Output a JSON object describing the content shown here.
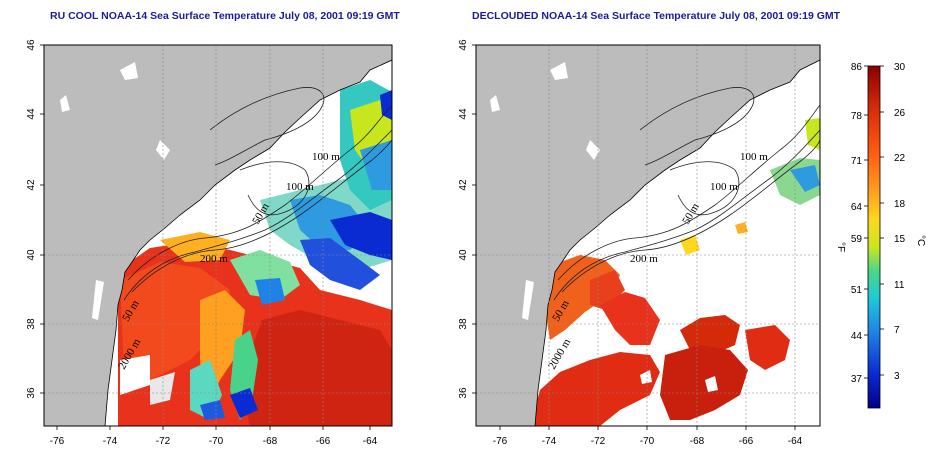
{
  "titles": {
    "left": "RU COOL NOAA-14 Sea Surface Temperature July 08, 2001 09:19 GMT",
    "right": "DECLOUDED NOAA-14 Sea Surface Temperature July 08, 2001 09:19 GMT"
  },
  "map": {
    "lat_ticks": [
      "46",
      "44",
      "42",
      "40",
      "38",
      "36"
    ],
    "lon_ticks": [
      "-76",
      "-74",
      "-72",
      "-70",
      "-68",
      "-66",
      "-64"
    ],
    "contour_labels": [
      "100 m",
      "100 m",
      "50 m",
      "200 m",
      "50 m",
      "2000 m"
    ]
  },
  "colorbar": {
    "f_unit": "°F",
    "c_unit": "°C",
    "f_ticks": [
      "86",
      "78",
      "71",
      "64",
      "59",
      "51",
      "44",
      "37"
    ],
    "c_ticks": [
      "30",
      "26",
      "22",
      "18",
      "15",
      "11",
      "7",
      "3"
    ],
    "colors": [
      "#8b0000",
      "#d42a0a",
      "#ff5a14",
      "#ff9a1e",
      "#ffd81e",
      "#c8e61e",
      "#4cd68a",
      "#1ec8d8",
      "#1e82e6",
      "#0a2ad2",
      "#000088"
    ]
  },
  "colors": {
    "land": "#bcbcbc",
    "water_blank": "#ffffff",
    "title": "#1a1aa0"
  }
}
